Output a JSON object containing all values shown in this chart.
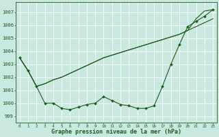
{
  "bg_color": "#c8e8e0",
  "grid_color": "#ffffff",
  "line_color": "#1a5c1a",
  "xlabel": "Graphe pression niveau de la mer (hPa)",
  "ylim": [
    998.5,
    1007.8
  ],
  "xlim": [
    -0.5,
    23.5
  ],
  "yticks": [
    999,
    1000,
    1001,
    1002,
    1003,
    1004,
    1005,
    1006,
    1007
  ],
  "xticks": [
    0,
    1,
    2,
    3,
    4,
    5,
    6,
    7,
    8,
    9,
    10,
    11,
    12,
    13,
    14,
    15,
    16,
    17,
    18,
    19,
    20,
    21,
    22,
    23
  ],
  "series1_y": [
    1003.5,
    1002.5,
    1001.3,
    1001.5,
    1001.8,
    1002.0,
    1002.3,
    1002.6,
    1002.9,
    1003.2,
    1003.5,
    1003.7,
    1003.9,
    1004.1,
    1004.3,
    1004.5,
    1004.7,
    1004.9,
    1005.1,
    1005.3,
    1005.6,
    1005.9,
    1006.2,
    1006.5
  ],
  "series2_y": [
    1003.5,
    1002.5,
    1001.3,
    1001.5,
    1001.8,
    1002.0,
    1002.3,
    1002.6,
    1002.9,
    1003.2,
    1003.5,
    1003.7,
    1003.9,
    1004.1,
    1004.3,
    1004.5,
    1004.7,
    1004.9,
    1005.1,
    1005.3,
    1005.6,
    1006.5,
    1007.1,
    1007.2
  ],
  "series3_y": [
    1003.5,
    1002.5,
    1001.3,
    1000.0,
    1000.0,
    999.6,
    999.5,
    999.7,
    999.9,
    1000.0,
    1000.5,
    1000.2,
    999.9,
    999.8,
    999.6,
    999.6,
    999.8,
    1001.3,
    1003.0,
    1004.5,
    1005.9,
    1006.3,
    1006.7,
    1007.2
  ],
  "ytick_fontsize": 5.0,
  "xtick_fontsize": 4.2,
  "xlabel_fontsize": 6.0
}
